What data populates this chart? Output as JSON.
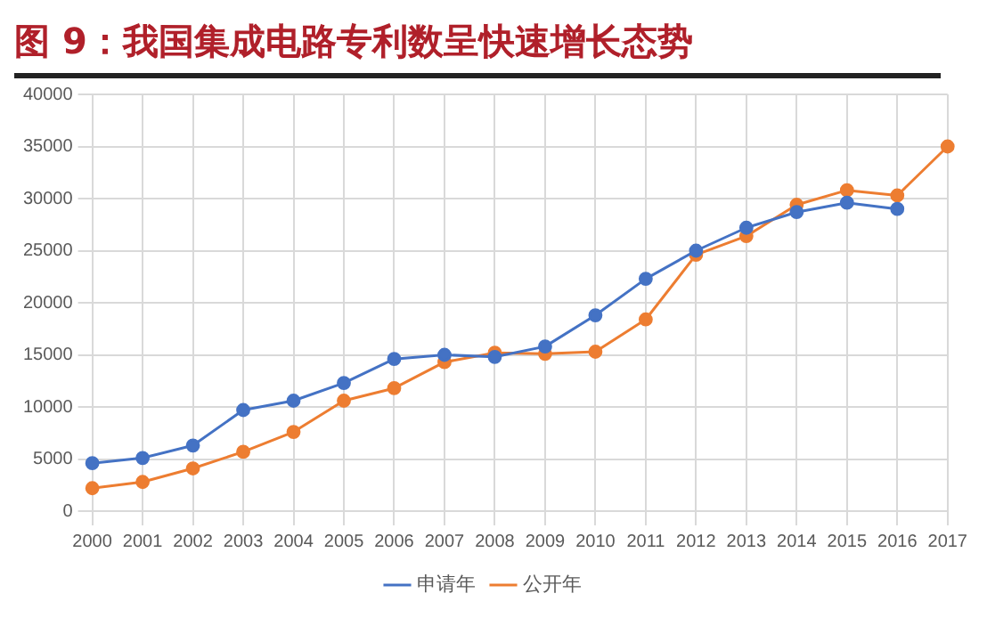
{
  "chart_data": {
    "type": "line",
    "title": "图 9：我国集成电路专利数呈快速增长态势",
    "categories": [
      "2000",
      "2001",
      "2002",
      "2003",
      "2004",
      "2005",
      "2006",
      "2007",
      "2008",
      "2009",
      "2010",
      "2011",
      "2012",
      "2013",
      "2014",
      "2015",
      "2016",
      "2017"
    ],
    "series": [
      {
        "name": "申请年",
        "color": "#4472c4",
        "values": [
          4600,
          5100,
          6300,
          9700,
          10600,
          12300,
          14600,
          15000,
          14800,
          15800,
          18800,
          22300,
          25000,
          27200,
          28700,
          29600,
          29000,
          null
        ]
      },
      {
        "name": "公开年",
        "color": "#ed7d31",
        "values": [
          2200,
          2800,
          4100,
          5700,
          7600,
          10600,
          11800,
          14300,
          15200,
          15100,
          15300,
          18400,
          24600,
          26400,
          29400,
          30800,
          30300,
          35000
        ]
      }
    ],
    "ylim": [
      0,
      40000
    ],
    "yticks": [
      0,
      5000,
      10000,
      15000,
      20000,
      25000,
      30000,
      35000,
      40000
    ],
    "grid": true,
    "legend": "bottom",
    "marker": "circle",
    "line_style": "solid"
  }
}
